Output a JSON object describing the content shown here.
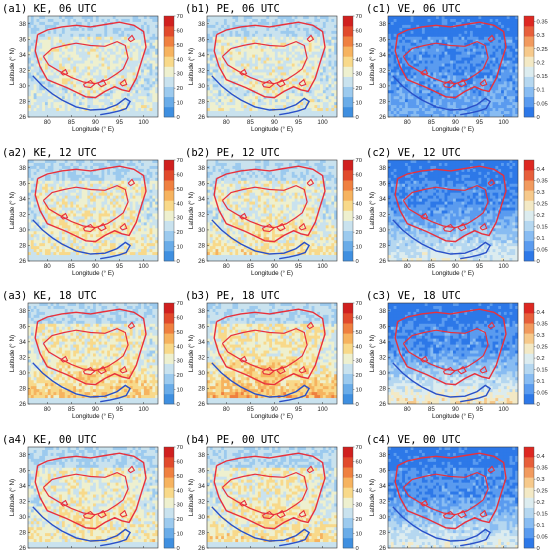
{
  "figure": {
    "x_label": "Longitude (° E)",
    "y_label": "Latitude (° N)",
    "x_ticks": [
      "80",
      "85",
      "90",
      "95",
      "100"
    ],
    "y_ticks": [
      "26",
      "28",
      "30",
      "32",
      "34",
      "36",
      "38"
    ],
    "x_range": [
      76,
      103
    ],
    "y_range": [
      26,
      39
    ],
    "contour_colors": {
      "outline": "#e8303c",
      "lowland": "#2a50c8"
    },
    "rows": [
      "06 UTC",
      "12 UTC",
      "18 UTC",
      "00 UTC"
    ],
    "columns": [
      "KE",
      "PE",
      "VE"
    ],
    "panels": [
      {
        "title": "(a1) KE, 06 UTC"
      },
      {
        "title": "(b1) PE, 06 UTC"
      },
      {
        "title": "(c1) VE, 06 UTC"
      },
      {
        "title": "(a2) KE, 12 UTC"
      },
      {
        "title": "(b2) PE, 12 UTC"
      },
      {
        "title": "(c2) VE, 12 UTC"
      },
      {
        "title": "(a3) KE, 18 UTC"
      },
      {
        "title": "(b3) PE, 18 UTC"
      },
      {
        "title": "(c3) VE, 18 UTC"
      },
      {
        "title": "(a4) KE, 00 UTC"
      },
      {
        "title": "(b4) PE, 00 UTC"
      },
      {
        "title": "(c4) VE, 00 UTC"
      }
    ],
    "colorbars": {
      "ke_pe": {
        "ticks": [
          "0",
          "10",
          "20",
          "30",
          "40",
          "50",
          "60",
          "70"
        ],
        "min": 0,
        "max": 70
      },
      "ve_06": {
        "ticks": [
          "0",
          "0.05",
          "0.1",
          "0.15",
          "0.2",
          "0.25",
          "0.3",
          "0.35"
        ],
        "min": 0,
        "max": 0.37
      },
      "ve": {
        "ticks": [
          "0",
          "0.05",
          "0.1",
          "0.15",
          "0.2",
          "0.25",
          "0.3",
          "0.35",
          "0.4"
        ],
        "min": 0,
        "max": 0.44
      }
    },
    "colormaps": {
      "ke_pe": [
        "#3f8fe0",
        "#6aace8",
        "#9ccaee",
        "#c9e2ee",
        "#eef0cf",
        "#f8d98a",
        "#f6b35f",
        "#ef8040",
        "#e14a2c",
        "#d0201f"
      ],
      "ve": [
        "#2d78e8",
        "#5a9bef",
        "#88bcf2",
        "#b5d7f0",
        "#dcecef",
        "#f3e9c5",
        "#f6c98b",
        "#f19a5e",
        "#e75f3b",
        "#dd2822"
      ]
    }
  }
}
